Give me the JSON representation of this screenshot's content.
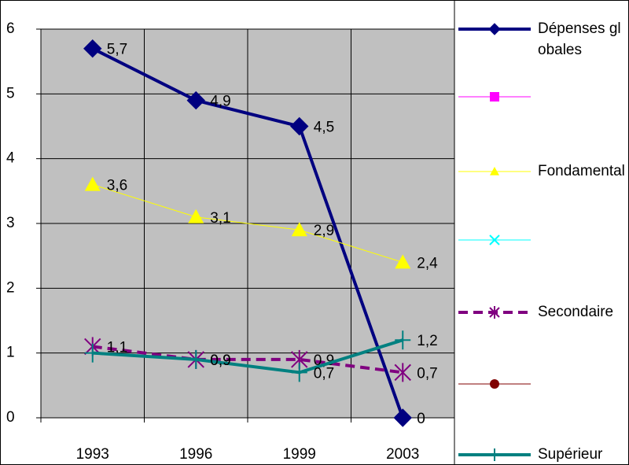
{
  "chart_data": {
    "type": "line",
    "categories": [
      "1993",
      "1996",
      "1999",
      "2003"
    ],
    "series": [
      {
        "name": "Dépenses globales",
        "color": "#000080",
        "marker": "diamond",
        "width": 4,
        "values": [
          5.7,
          4.9,
          4.5,
          0
        ],
        "value_labels": [
          "5,7",
          "4,9",
          "4,5",
          "0"
        ]
      },
      {
        "name": null,
        "color": "#ff00ff",
        "marker": "square",
        "width": 1,
        "values": [
          null,
          null,
          null,
          null
        ]
      },
      {
        "name": "Fondamental",
        "color": "#ffff00",
        "marker": "triangle",
        "width": 1,
        "values": [
          3.6,
          3.1,
          2.9,
          2.4
        ],
        "value_labels": [
          "3,6",
          "3,1",
          "2,9",
          "2,4"
        ]
      },
      {
        "name": null,
        "color": "#00ffff",
        "marker": "x",
        "width": 1,
        "values": [
          null,
          null,
          null,
          null
        ]
      },
      {
        "name": "Secondaire",
        "color": "#800080",
        "marker": "star",
        "width": 4,
        "dashed": true,
        "values": [
          1.1,
          0.9,
          0.9,
          0.7
        ],
        "value_labels": [
          "1,1",
          "0,9",
          "0,9",
          "0,7"
        ]
      },
      {
        "name": null,
        "color": "#800000",
        "marker": "circle",
        "width": 1,
        "values": [
          null,
          null,
          null,
          null
        ]
      },
      {
        "name": "Supérieur",
        "color": "#008080",
        "marker": "plus",
        "width": 4,
        "values": [
          1,
          0.9,
          0.7,
          1.2
        ],
        "value_labels": [
          null,
          "0,9",
          "0,7",
          "1,2"
        ]
      }
    ],
    "ylim": [
      0,
      6
    ],
    "yticks": [
      0,
      1,
      2,
      3,
      4,
      5,
      6
    ],
    "grid": true,
    "legend": "right"
  }
}
